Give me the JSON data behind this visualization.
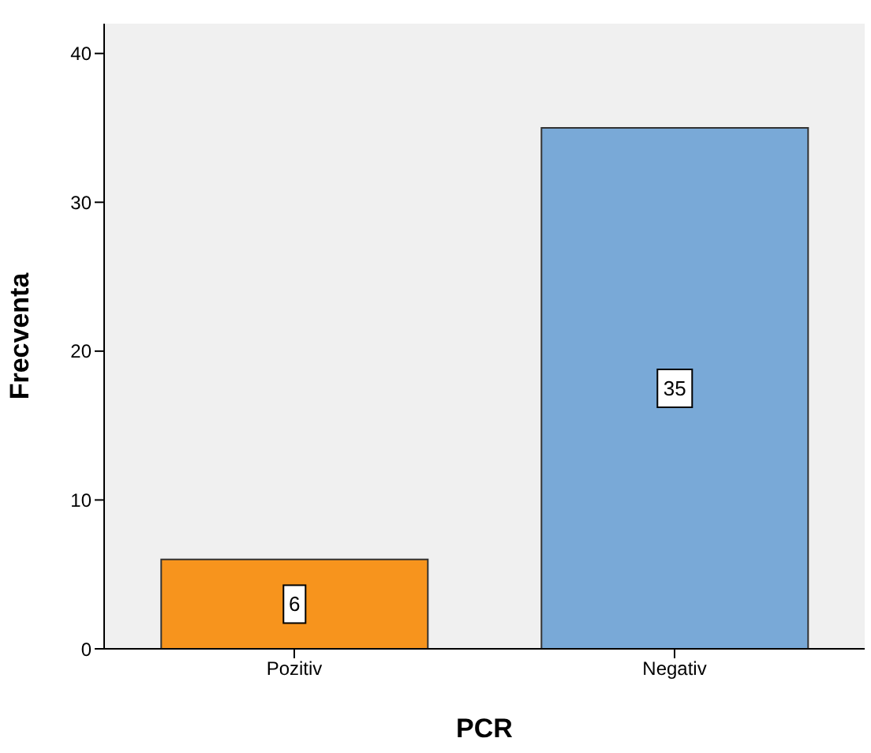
{
  "chart_data": {
    "type": "bar",
    "xlabel": "PCR",
    "ylabel": "Frecventa",
    "categories": [
      "Pozitiv",
      "Negativ"
    ],
    "values": [
      6,
      35
    ],
    "colors": [
      "#f7941d",
      "#79a9d7"
    ],
    "ylim": [
      0,
      42
    ],
    "yticks": [
      0,
      10,
      20,
      30,
      40
    ],
    "data_labels": true,
    "grid": false
  }
}
